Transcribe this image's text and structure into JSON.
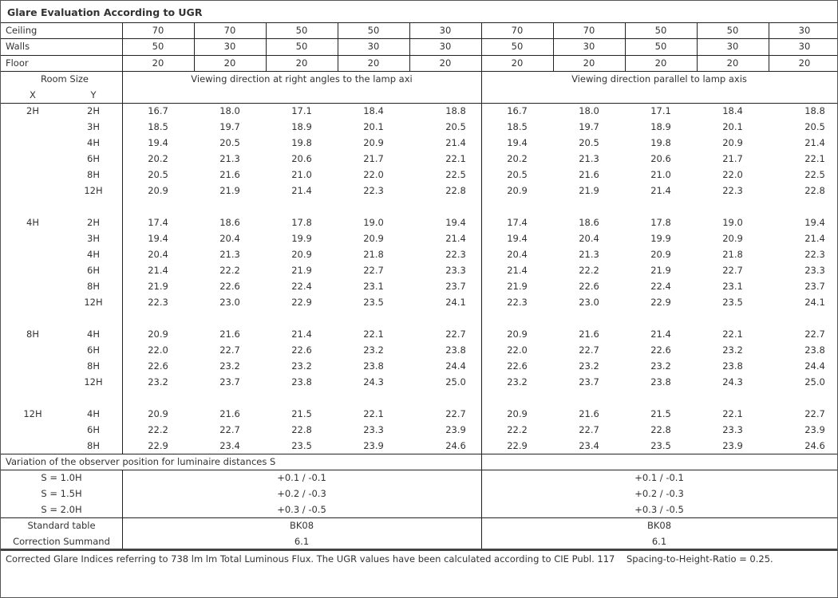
{
  "title": "Glare Evaluation According to UGR",
  "reflectances": [
    {
      "label": "Ceiling",
      "values": [
        "70",
        "70",
        "50",
        "50",
        "30",
        "70",
        "70",
        "50",
        "50",
        "30"
      ]
    },
    {
      "label": "Walls",
      "values": [
        "50",
        "30",
        "50",
        "30",
        "30",
        "50",
        "30",
        "50",
        "30",
        "30"
      ]
    },
    {
      "label": "Floor",
      "values": [
        "20",
        "20",
        "20",
        "20",
        "20",
        "20",
        "20",
        "20",
        "20",
        "20"
      ]
    }
  ],
  "room_size": {
    "label": "Room Size",
    "x": "X",
    "y": "Y"
  },
  "direction_left": "Viewing direction at right angles to the lamp axi",
  "direction_right": "Viewing direction parallel to lamp axis",
  "groups": [
    {
      "x": "2H",
      "rows": [
        {
          "y": "2H",
          "values": [
            "16.7",
            "18.0",
            "17.1",
            "18.4",
            "18.8",
            "16.7",
            "18.0",
            "17.1",
            "18.4",
            "18.8"
          ]
        },
        {
          "y": "3H",
          "values": [
            "18.5",
            "19.7",
            "18.9",
            "20.1",
            "20.5",
            "18.5",
            "19.7",
            "18.9",
            "20.1",
            "20.5"
          ]
        },
        {
          "y": "4H",
          "values": [
            "19.4",
            "20.5",
            "19.8",
            "20.9",
            "21.4",
            "19.4",
            "20.5",
            "19.8",
            "20.9",
            "21.4"
          ]
        },
        {
          "y": "6H",
          "values": [
            "20.2",
            "21.3",
            "20.6",
            "21.7",
            "22.1",
            "20.2",
            "21.3",
            "20.6",
            "21.7",
            "22.1"
          ]
        },
        {
          "y": "8H",
          "values": [
            "20.5",
            "21.6",
            "21.0",
            "22.0",
            "22.5",
            "20.5",
            "21.6",
            "21.0",
            "22.0",
            "22.5"
          ]
        },
        {
          "y": "12H",
          "values": [
            "20.9",
            "21.9",
            "21.4",
            "22.3",
            "22.8",
            "20.9",
            "21.9",
            "21.4",
            "22.3",
            "22.8"
          ]
        }
      ]
    },
    {
      "x": "4H",
      "rows": [
        {
          "y": "2H",
          "values": [
            "17.4",
            "18.6",
            "17.8",
            "19.0",
            "19.4",
            "17.4",
            "18.6",
            "17.8",
            "19.0",
            "19.4"
          ]
        },
        {
          "y": "3H",
          "values": [
            "19.4",
            "20.4",
            "19.9",
            "20.9",
            "21.4",
            "19.4",
            "20.4",
            "19.9",
            "20.9",
            "21.4"
          ]
        },
        {
          "y": "4H",
          "values": [
            "20.4",
            "21.3",
            "20.9",
            "21.8",
            "22.3",
            "20.4",
            "21.3",
            "20.9",
            "21.8",
            "22.3"
          ]
        },
        {
          "y": "6H",
          "values": [
            "21.4",
            "22.2",
            "21.9",
            "22.7",
            "23.3",
            "21.4",
            "22.2",
            "21.9",
            "22.7",
            "23.3"
          ]
        },
        {
          "y": "8H",
          "values": [
            "21.9",
            "22.6",
            "22.4",
            "23.1",
            "23.7",
            "21.9",
            "22.6",
            "22.4",
            "23.1",
            "23.7"
          ]
        },
        {
          "y": "12H",
          "values": [
            "22.3",
            "23.0",
            "22.9",
            "23.5",
            "24.1",
            "22.3",
            "23.0",
            "22.9",
            "23.5",
            "24.1"
          ]
        }
      ]
    },
    {
      "x": "8H",
      "rows": [
        {
          "y": "4H",
          "values": [
            "20.9",
            "21.6",
            "21.4",
            "22.1",
            "22.7",
            "20.9",
            "21.6",
            "21.4",
            "22.1",
            "22.7"
          ]
        },
        {
          "y": "6H",
          "values": [
            "22.0",
            "22.7",
            "22.6",
            "23.2",
            "23.8",
            "22.0",
            "22.7",
            "22.6",
            "23.2",
            "23.8"
          ]
        },
        {
          "y": "8H",
          "values": [
            "22.6",
            "23.2",
            "23.2",
            "23.8",
            "24.4",
            "22.6",
            "23.2",
            "23.2",
            "23.8",
            "24.4"
          ]
        },
        {
          "y": "12H",
          "values": [
            "23.2",
            "23.7",
            "23.8",
            "24.3",
            "25.0",
            "23.2",
            "23.7",
            "23.8",
            "24.3",
            "25.0"
          ]
        }
      ]
    },
    {
      "x": "12H",
      "rows": [
        {
          "y": "4H",
          "values": [
            "20.9",
            "21.6",
            "21.5",
            "22.1",
            "22.7",
            "20.9",
            "21.6",
            "21.5",
            "22.1",
            "22.7"
          ]
        },
        {
          "y": "6H",
          "values": [
            "22.2",
            "22.7",
            "22.8",
            "23.3",
            "23.9",
            "22.2",
            "22.7",
            "22.8",
            "23.3",
            "23.9"
          ]
        },
        {
          "y": "8H",
          "values": [
            "22.9",
            "23.4",
            "23.5",
            "23.9",
            "24.6",
            "22.9",
            "23.4",
            "23.5",
            "23.9",
            "24.6"
          ]
        }
      ]
    }
  ],
  "variation": {
    "title": "Variation of the observer position for luminaire distances S",
    "rows": [
      {
        "label": "S = 1.0H",
        "left": "+0.1 / -0.1",
        "right": "+0.1 / -0.1"
      },
      {
        "label": "S = 1.5H",
        "left": "+0.2 / -0.3",
        "right": "+0.2 / -0.3"
      },
      {
        "label": "S = 2.0H",
        "left": "+0.3 / -0.5",
        "right": "+0.3 / -0.5"
      }
    ]
  },
  "standard": {
    "label": "Standard table",
    "left": "BK08",
    "right": "BK08"
  },
  "correction": {
    "label": "Correction Summand",
    "left": "6.1",
    "right": "6.1"
  },
  "footer": "Corrected Glare Indices referring to 738 lm lm Total Luminous Flux. The UGR values have been calculated according to CIE Publ. 117    Spacing-to-Height-Ratio = 0.25."
}
